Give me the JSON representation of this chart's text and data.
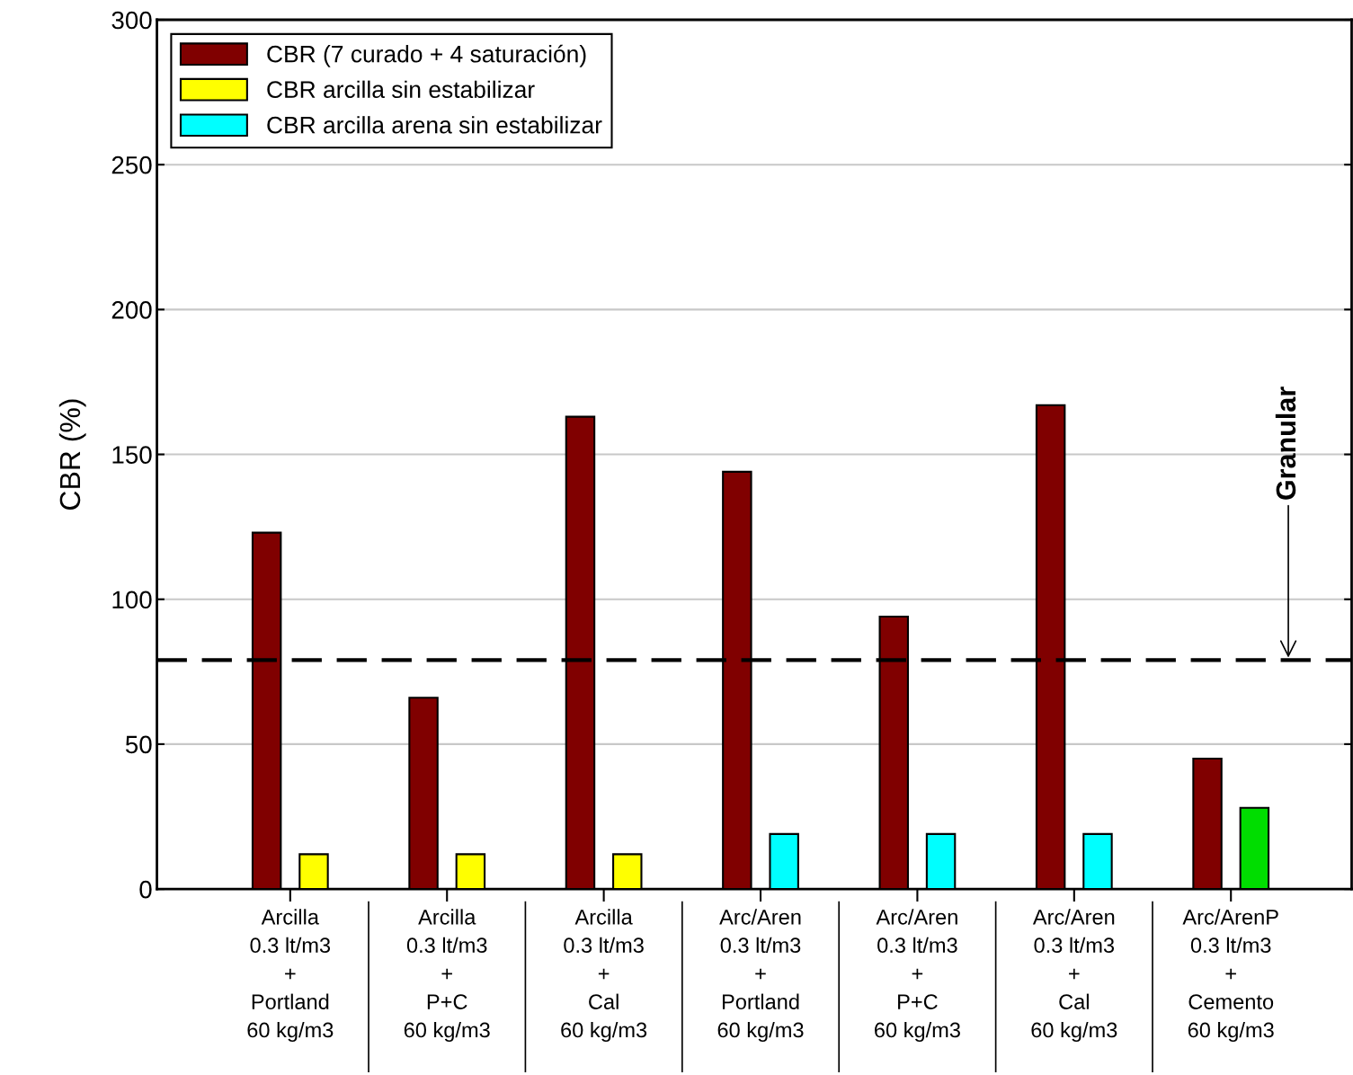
{
  "chart_data": {
    "type": "bar",
    "ylabel": "CBR (%)",
    "categories": [
      "Arcilla\n0.3 lt/m3\n+\nPortland\n60 kg/m3",
      "Arcilla\n0.3 lt/m3\n+\nP+C\n60 kg/m3",
      "Arcilla\n0.3 lt/m3\n+\nCal\n60 kg/m3",
      "Arc/Aren\n0.3 lt/m3\n+\nPortland\n60 kg/m3",
      "Arc/Aren\n0.3 lt/m3\n+\nP+C\n60 kg/m3",
      "Arc/Aren\n0.3 lt/m3\n+\nCal\n60 kg/m3",
      "Arc/ArenP\n0.3 lt/m3\n+\nCemento\n60 kg/m3"
    ],
    "series": [
      {
        "name": "CBR (7 curado + 4 saturación)",
        "color": "#800000",
        "values": [
          123,
          66,
          163,
          144,
          94,
          167,
          45
        ]
      },
      {
        "name": "CBR arcilla sin estabilizar",
        "color": "#ffff00",
        "values": [
          12,
          12,
          12,
          null,
          null,
          null,
          null
        ]
      },
      {
        "name": "CBR arcilla arena sin estabilizar",
        "color": "#00ffff",
        "values": [
          null,
          null,
          null,
          19,
          19,
          19,
          null
        ]
      },
      {
        "color": "#00dd00",
        "values": [
          null,
          null,
          null,
          null,
          null,
          null,
          28
        ]
      }
    ],
    "ylim": [
      0,
      300
    ],
    "yticks": [
      0,
      50,
      100,
      150,
      200,
      250,
      300
    ],
    "grid": "y",
    "legend": "top left",
    "ref_lines": [
      {
        "axis": "y",
        "value": 79,
        "label": "Granular",
        "color": "#000000",
        "line_style": "dashed"
      }
    ]
  }
}
